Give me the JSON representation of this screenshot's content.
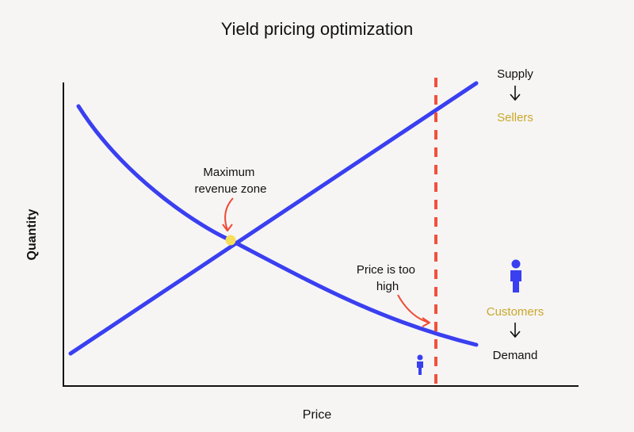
{
  "title": "Yield pricing optimization",
  "axes": {
    "x_label": "Price",
    "y_label": "Quantity"
  },
  "curves": {
    "supply": {
      "label": "Supply",
      "role_label": "Sellers"
    },
    "demand": {
      "label": "Demand",
      "role_label": "Customers"
    }
  },
  "annotations": {
    "max_revenue": [
      "Maximum",
      "revenue zone"
    ],
    "price_too_high": [
      "Price is too",
      "high"
    ]
  },
  "icons": {
    "down_arrow": "down-arrow-icon",
    "person": "person-icon"
  },
  "colors": {
    "curve": "#3a3ff0",
    "price_line": "#f2503c",
    "marker": "#f7df5a",
    "role_label": "#c9a82a",
    "arrow": "#ef4b35",
    "axis": "#111111",
    "background": "#f6f5f4"
  }
}
